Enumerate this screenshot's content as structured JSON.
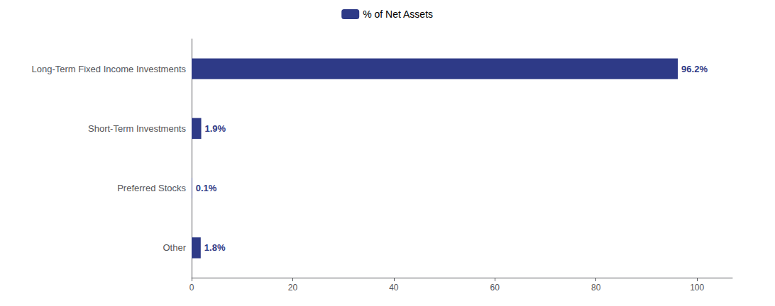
{
  "chart_data": {
    "type": "bar",
    "orientation": "horizontal",
    "categories": [
      "Long-Term Fixed Income Investments",
      "Short-Term Investments",
      "Preferred Stocks",
      "Other"
    ],
    "series": [
      {
        "name": "% of Net Assets",
        "color": "#2E3A87",
        "values": [
          96.2,
          1.9,
          0.1,
          1.8
        ],
        "value_labels": [
          "96.2%",
          "1.9%",
          "0.1%",
          "1.8%"
        ]
      }
    ],
    "xlim": [
      0,
      107
    ],
    "xticks": [
      0,
      20,
      40,
      60,
      80,
      100
    ],
    "grid": false,
    "legend": "top",
    "data_labels": true
  }
}
